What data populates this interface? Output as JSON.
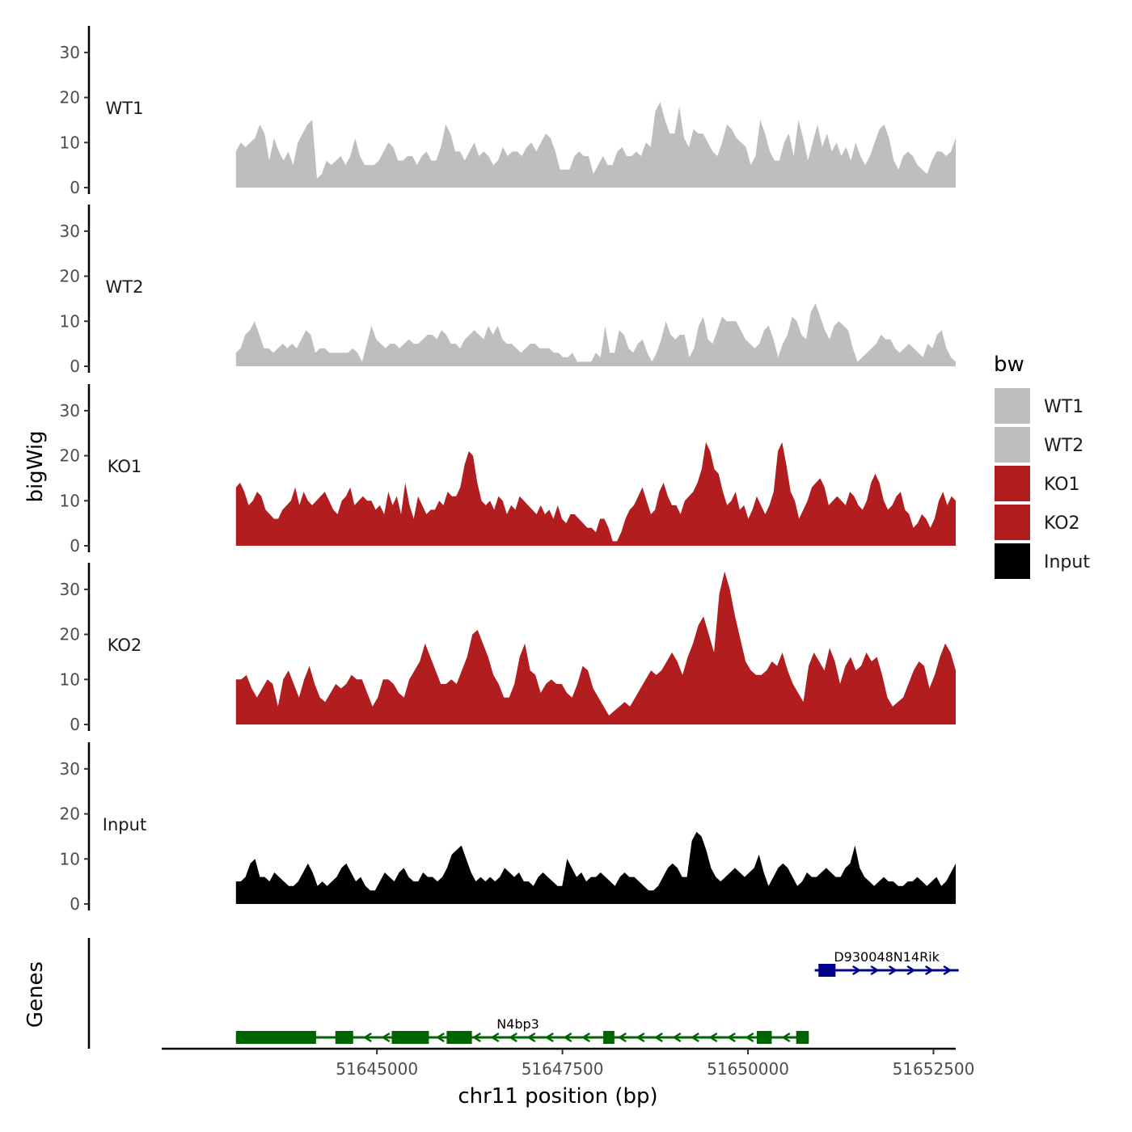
{
  "chart_data": {
    "type": "area",
    "ylabel": "bigWig",
    "xlabel": "chr11 position (bp)",
    "xlim": [
      51642100,
      51652800
    ],
    "x_data_range": [
      51643100,
      51652800
    ],
    "ylim": [
      0,
      35
    ],
    "yticks": [
      0,
      10,
      20,
      30
    ],
    "xticks": [
      51645000,
      51647500,
      51650000,
      51652500
    ],
    "xtick_labels": [
      "51645000",
      "51647500",
      "51650000",
      "51652500"
    ],
    "colors": {
      "WT1": "#bebebe",
      "WT2": "#bebebe",
      "KO1": "#b21d1f",
      "KO2": "#b21d1f",
      "Input": "#000000"
    },
    "tracks": [
      {
        "name": "WT1",
        "values": [
          8,
          10,
          9,
          10,
          11,
          14,
          12,
          6,
          11,
          8,
          6,
          8,
          5,
          10,
          12,
          14,
          15,
          2,
          3,
          6,
          5,
          6,
          7,
          5,
          7,
          11,
          7,
          5,
          5,
          5,
          6,
          8,
          10,
          9,
          6,
          6,
          7,
          7,
          5,
          7,
          8,
          6,
          6,
          9,
          14,
          12,
          8,
          8,
          6,
          8,
          10,
          7,
          8,
          7,
          5,
          6,
          9,
          7,
          8,
          8,
          7,
          9,
          10,
          8,
          10,
          12,
          11,
          8,
          4,
          4,
          4,
          7,
          8,
          7,
          7,
          3,
          5,
          7,
          5,
          5,
          8,
          9,
          7,
          7,
          8,
          7,
          10,
          9,
          17,
          19,
          15,
          12,
          12,
          18,
          11,
          9,
          13,
          12,
          12,
          10,
          8,
          7,
          10,
          14,
          13,
          11,
          10,
          9,
          5,
          7,
          15,
          12,
          8,
          6,
          6,
          10,
          12,
          7,
          15,
          11,
          6,
          10,
          14,
          9,
          12,
          8,
          10,
          7,
          9,
          6,
          10,
          7,
          5,
          7,
          10,
          13,
          14,
          11,
          6,
          4,
          7,
          8,
          7,
          5,
          4,
          3,
          6,
          8,
          8,
          7,
          8,
          11
        ]
      },
      {
        "name": "WT2",
        "values": [
          3,
          4,
          7,
          8,
          10,
          7,
          4,
          4,
          3,
          4,
          5,
          4,
          5,
          4,
          6,
          8,
          7,
          3,
          4,
          4,
          3,
          3,
          3,
          3,
          3,
          4,
          3,
          1,
          5,
          9,
          6,
          5,
          4,
          5,
          5,
          4,
          5,
          6,
          5,
          5,
          6,
          7,
          7,
          6,
          8,
          7,
          5,
          5,
          4,
          6,
          7,
          8,
          7,
          6,
          9,
          7,
          9,
          6,
          5,
          5,
          4,
          3,
          4,
          5,
          5,
          4,
          4,
          4,
          3,
          3,
          2,
          2,
          3,
          1,
          1,
          1,
          1,
          3,
          2,
          9,
          3,
          3,
          8,
          7,
          4,
          3,
          5,
          6,
          3,
          1,
          3,
          6,
          10,
          7,
          6,
          7,
          7,
          2,
          4,
          9,
          11,
          6,
          5,
          8,
          11,
          10,
          10,
          10,
          8,
          6,
          5,
          4,
          5,
          8,
          9,
          6,
          2,
          5,
          7,
          11,
          10,
          7,
          6,
          12,
          14,
          11,
          8,
          6,
          9,
          10,
          9,
          8,
          4,
          1,
          2,
          3,
          4,
          5,
          7,
          6,
          6,
          4,
          3,
          4,
          5,
          4,
          3,
          2,
          5,
          4,
          7,
          8,
          4,
          2,
          1
        ]
      },
      {
        "name": "KO1",
        "values": [
          13,
          14,
          12,
          9,
          10,
          12,
          11,
          8,
          7,
          6,
          6,
          8,
          9,
          10,
          13,
          9,
          12,
          10,
          9,
          10,
          11,
          12,
          10,
          8,
          7,
          10,
          11,
          13,
          9,
          10,
          11,
          10,
          10,
          8,
          9,
          7,
          12,
          9,
          11,
          7,
          14,
          9,
          6,
          11,
          9,
          7,
          8,
          8,
          10,
          9,
          12,
          11,
          11,
          13,
          18,
          21,
          20,
          14,
          10,
          9,
          10,
          8,
          11,
          10,
          7,
          9,
          8,
          11,
          10,
          9,
          8,
          7,
          9,
          7,
          8,
          6,
          9,
          6,
          5,
          7,
          7,
          6,
          5,
          4,
          4,
          3,
          6,
          6,
          4,
          1,
          1,
          3,
          6,
          8,
          9,
          11,
          13,
          10,
          7,
          8,
          12,
          14,
          11,
          9,
          9,
          7,
          10,
          11,
          12,
          14,
          17,
          23,
          21,
          17,
          16,
          12,
          9,
          10,
          12,
          8,
          9,
          6,
          8,
          11,
          9,
          7,
          9,
          12,
          21,
          23,
          18,
          12,
          10,
          6,
          8,
          10,
          13,
          14,
          15,
          13,
          9,
          10,
          11,
          10,
          9,
          12,
          11,
          9,
          8,
          10,
          14,
          16,
          14,
          10,
          8,
          9,
          11,
          12,
          8,
          7,
          4,
          5,
          7,
          6,
          4,
          6,
          10,
          12,
          9,
          11,
          10
        ]
      },
      {
        "name": "KO2",
        "values": [
          10,
          10,
          11,
          8,
          6,
          8,
          10,
          9,
          4,
          10,
          12,
          9,
          6,
          10,
          13,
          9,
          6,
          5,
          7,
          9,
          8,
          9,
          11,
          10,
          10,
          7,
          4,
          6,
          10,
          10,
          9,
          7,
          6,
          10,
          12,
          14,
          18,
          15,
          12,
          9,
          9,
          10,
          9,
          12,
          15,
          20,
          21,
          18,
          15,
          11,
          9,
          6,
          6,
          9,
          15,
          18,
          12,
          11,
          7,
          9,
          10,
          9,
          9,
          7,
          6,
          9,
          13,
          12,
          8,
          6,
          4,
          2,
          3,
          4,
          5,
          4,
          6,
          8,
          10,
          12,
          11,
          12,
          14,
          16,
          14,
          11,
          15,
          18,
          22,
          24,
          20,
          16,
          29,
          34,
          30,
          24,
          19,
          14,
          12,
          11,
          11,
          12,
          14,
          13,
          16,
          12,
          9,
          7,
          5,
          13,
          16,
          14,
          12,
          17,
          14,
          9,
          13,
          15,
          12,
          13,
          16,
          14,
          15,
          11,
          6,
          4,
          5,
          6,
          9,
          12,
          14,
          13,
          8,
          11,
          15,
          18,
          16,
          12
        ]
      },
      {
        "name": "Input",
        "values": [
          5,
          5,
          6,
          9,
          10,
          6,
          6,
          5,
          7,
          6,
          5,
          4,
          4,
          5,
          7,
          9,
          7,
          4,
          5,
          4,
          5,
          6,
          8,
          9,
          7,
          5,
          6,
          4,
          3,
          3,
          5,
          7,
          6,
          5,
          7,
          8,
          6,
          5,
          5,
          7,
          6,
          6,
          5,
          6,
          8,
          11,
          12,
          13,
          10,
          7,
          5,
          6,
          5,
          6,
          5,
          6,
          8,
          7,
          6,
          7,
          5,
          5,
          4,
          6,
          7,
          6,
          5,
          4,
          4,
          10,
          8,
          6,
          7,
          5,
          6,
          6,
          7,
          6,
          5,
          4,
          6,
          7,
          6,
          6,
          5,
          4,
          3,
          3,
          4,
          6,
          8,
          9,
          8,
          6,
          6,
          14,
          16,
          15,
          12,
          8,
          6,
          5,
          6,
          7,
          8,
          7,
          6,
          7,
          8,
          11,
          7,
          4,
          6,
          8,
          9,
          8,
          6,
          4,
          5,
          7,
          6,
          6,
          7,
          8,
          7,
          6,
          6,
          8,
          9,
          13,
          8,
          6,
          5,
          4,
          5,
          6,
          5,
          5,
          4,
          4,
          5,
          5,
          6,
          5,
          4,
          5,
          6,
          4,
          5,
          7,
          9
        ]
      }
    ],
    "legend": {
      "title": "bw",
      "entries": [
        "WT1",
        "WT2",
        "KO1",
        "KO2",
        "Input"
      ],
      "position": "right"
    },
    "genes_label": "Genes",
    "genes": [
      {
        "name": "D930048N14Rik",
        "strand": "+",
        "color": "#00008b",
        "start": 51650900,
        "end": 51652840,
        "exons": [
          [
            51650950,
            51651180
          ]
        ]
      },
      {
        "name": "N4bp3",
        "strand": "-",
        "color": "#006400",
        "start": 51643100,
        "end": 51650820,
        "exons": [
          [
            51643100,
            51644180
          ],
          [
            51644440,
            51644680
          ],
          [
            51645200,
            51645700
          ],
          [
            51645940,
            51646280
          ],
          [
            51648050,
            51648200
          ],
          [
            51650120,
            51650320
          ],
          [
            51650650,
            51650820
          ]
        ]
      }
    ]
  }
}
